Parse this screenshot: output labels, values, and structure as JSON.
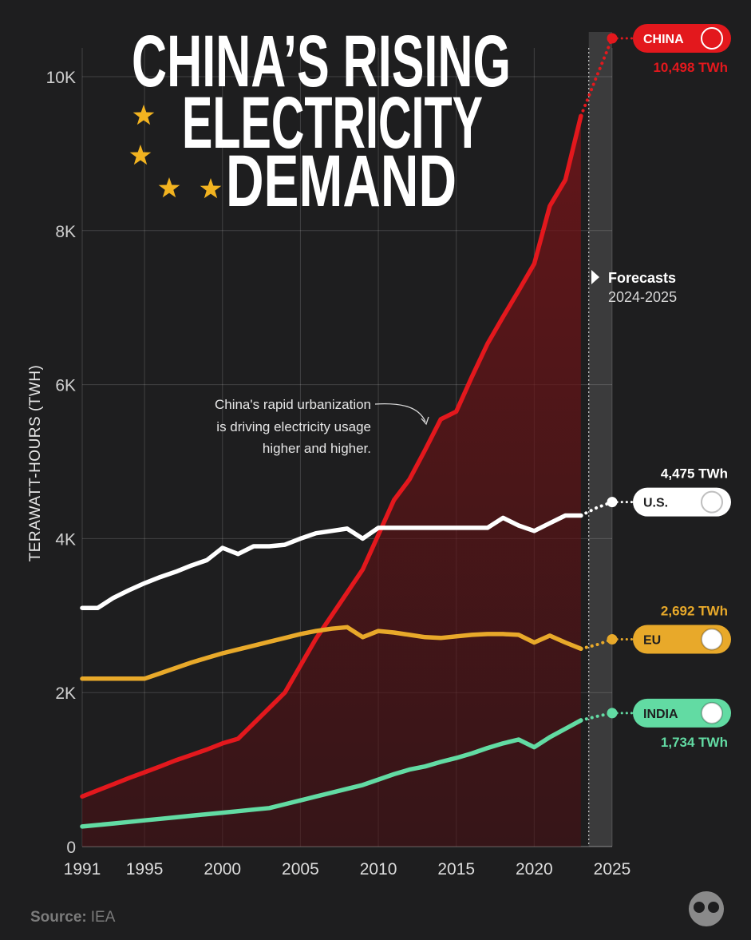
{
  "chart_data": {
    "type": "line",
    "title": [
      "CHINA’S RISING",
      "ELECTRICITY",
      "DEMAND"
    ],
    "y_label": "TERAWATT-HOURS (TWH)",
    "annotation": [
      "China's rapid urbanization",
      "is driving electricity usage",
      "higher and higher."
    ],
    "forecast_label": [
      "Forecasts",
      "2024-2025"
    ],
    "forecast_range": [
      2023.5,
      2025
    ],
    "source": {
      "label": "Source:",
      "text": "IEA"
    },
    "x": [
      1991,
      1992,
      1993,
      1994,
      1995,
      1996,
      1997,
      1998,
      1999,
      2000,
      2001,
      2002,
      2003,
      2004,
      2005,
      2006,
      2007,
      2008,
      2009,
      2010,
      2011,
      2012,
      2013,
      2014,
      2015,
      2016,
      2017,
      2018,
      2019,
      2020,
      2021,
      2022,
      2023,
      2024,
      2025
    ],
    "xlim": [
      1991,
      2025
    ],
    "xticks": [
      1991,
      1995,
      2000,
      2005,
      2010,
      2015,
      2020,
      2025
    ],
    "ylim": [
      0,
      10000
    ],
    "yticks": [
      0,
      {
        "value": 2000,
        "label": "2K"
      },
      {
        "value": 4000,
        "label": "4K"
      },
      {
        "value": 6000,
        "label": "6K"
      },
      {
        "value": 8000,
        "label": "8K"
      },
      {
        "value": 10000,
        "label": "10K"
      }
    ],
    "grid": true,
    "series": [
      {
        "name": "CHINA",
        "color": "#e3181d",
        "value_labels": "10,498 TWh",
        "values": [
          650,
          730,
          810,
          890,
          965,
          1040,
          1120,
          1190,
          1260,
          1340,
          1400,
          1600,
          1800,
          2000,
          2350,
          2700,
          3000,
          3300,
          3600,
          4050,
          4500,
          4770,
          5150,
          5550,
          5650,
          6100,
          6530,
          6880,
          7220,
          7570,
          8320,
          8660,
          9490,
          10000,
          10498
        ]
      },
      {
        "name": "U.S.",
        "color": "#ffffff",
        "value_labels": "4,475 TWh",
        "values": [
          3100,
          3100,
          3230,
          3330,
          3420,
          3500,
          3570,
          3650,
          3720,
          3880,
          3800,
          3900,
          3900,
          3920,
          4000,
          4070,
          4100,
          4130,
          4000,
          4140,
          4140,
          4140,
          4140,
          4140,
          4140,
          4140,
          4140,
          4270,
          4170,
          4100,
          4200,
          4300,
          4300,
          4400,
          4475
        ]
      },
      {
        "name": "EU",
        "color": "#e8a92a",
        "value_labels": "2,692 TWh",
        "values": [
          2180,
          2180,
          2180,
          2180,
          2180,
          2250,
          2320,
          2390,
          2450,
          2510,
          2560,
          2610,
          2660,
          2710,
          2760,
          2800,
          2830,
          2850,
          2720,
          2800,
          2780,
          2750,
          2720,
          2710,
          2730,
          2750,
          2760,
          2760,
          2750,
          2650,
          2740,
          2650,
          2570,
          2620,
          2692
        ]
      },
      {
        "name": "INDIA",
        "color": "#62dba3",
        "value_labels": "1,734 TWh",
        "values": [
          260,
          280,
          300,
          320,
          340,
          360,
          380,
          400,
          420,
          440,
          460,
          480,
          500,
          550,
          600,
          650,
          700,
          750,
          800,
          870,
          940,
          1000,
          1040,
          1100,
          1150,
          1210,
          1280,
          1340,
          1390,
          1290,
          1420,
          1530,
          1640,
          1690,
          1734
        ]
      }
    ]
  }
}
